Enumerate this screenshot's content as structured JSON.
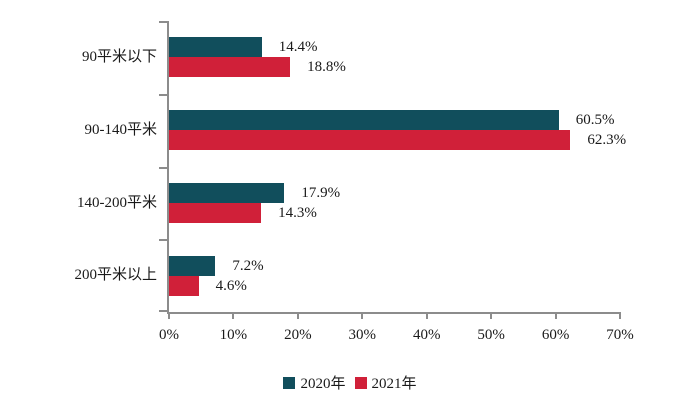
{
  "chart_data": {
    "type": "bar",
    "orientation": "horizontal",
    "title": "",
    "categories": [
      "90平米以下",
      "90-140平米",
      "140-200平米",
      "200平米以上"
    ],
    "series": [
      {
        "name": "2020年",
        "color": "#114E5C",
        "values": [
          14.4,
          60.5,
          17.9,
          7.2
        ]
      },
      {
        "name": "2021年",
        "color": "#D02039",
        "values": [
          18.8,
          62.3,
          14.3,
          4.6
        ]
      }
    ],
    "value_labels": [
      [
        "14.4%",
        "60.5%",
        "17.9%",
        "7.2%"
      ],
      [
        "18.8%",
        "62.3%",
        "14.3%",
        "4.6%"
      ]
    ],
    "xlim": [
      0,
      70
    ],
    "x_ticks": [
      "0%",
      "10%",
      "20%",
      "30%",
      "40%",
      "50%",
      "60%",
      "70%"
    ],
    "grid": "off",
    "legend_position": "bottom",
    "axis_color": "#8C8C8C",
    "text_color": "#1A1A1A",
    "background_color": "#FFFFFF"
  }
}
